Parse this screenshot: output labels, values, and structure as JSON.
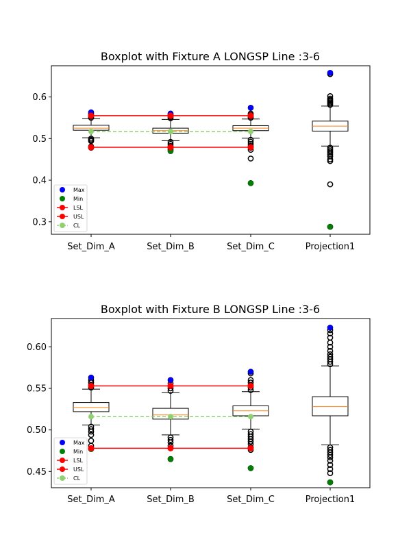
{
  "chart_data": [
    {
      "type": "box",
      "title": "Boxplot with Fixture A LONGSP Line :3-6",
      "categories": [
        "Set_Dim_A",
        "Set_Dim_B",
        "Set_Dim_C",
        "Projection1"
      ],
      "ylim": [
        0.27,
        0.675
      ],
      "yticks": [
        0.3,
        0.4,
        0.5,
        0.6
      ],
      "boxes": [
        {
          "q1": 0.52,
          "median": 0.525,
          "q3": 0.532,
          "whisker_low": 0.502,
          "whisker_high": 0.548,
          "outliers": [
            0.55,
            0.553,
            0.556,
            0.559,
            0.563,
            0.494,
            0.497,
            0.5,
            0.481,
            0.478
          ]
        },
        {
          "q1": 0.513,
          "median": 0.519,
          "q3": 0.525,
          "whisker_low": 0.495,
          "whisker_high": 0.546,
          "outliers": [
            0.549,
            0.552,
            0.555,
            0.558,
            0.56,
            0.492,
            0.487,
            0.482,
            0.478,
            0.474,
            0.47
          ]
        },
        {
          "q1": 0.519,
          "median": 0.525,
          "q3": 0.531,
          "whisker_low": 0.501,
          "whisker_high": 0.547,
          "outliers": [
            0.55,
            0.553,
            0.557,
            0.56,
            0.574,
            0.497,
            0.492,
            0.487,
            0.482,
            0.478,
            0.473,
            0.452,
            0.393
          ]
        },
        {
          "q1": 0.518,
          "median": 0.53,
          "q3": 0.542,
          "whisker_low": 0.482,
          "whisker_high": 0.578,
          "outliers": [
            0.581,
            0.584,
            0.587,
            0.59,
            0.593,
            0.596,
            0.602,
            0.655,
            0.658,
            0.478,
            0.474,
            0.47,
            0.466,
            0.462,
            0.457,
            0.45,
            0.446,
            0.39,
            0.288
          ]
        }
      ],
      "max_points": [
        0.563,
        0.56,
        0.574,
        0.658
      ],
      "min_points": [
        0.478,
        0.47,
        0.393,
        0.288
      ],
      "lsl": 0.479,
      "usl": 0.555,
      "cl": 0.517,
      "limit_points": [
        {
          "usl": 0.555,
          "lsl": 0.479,
          "cl": 0.517
        },
        {
          "usl": 0.555,
          "lsl": 0.479,
          "cl": 0.517
        },
        {
          "usl": 0.555,
          "lsl": 0.479,
          "cl": 0.517
        }
      ],
      "legend": [
        "Max",
        "Min",
        "LSL",
        "USL",
        "CL"
      ],
      "legend_position": "lower-left",
      "colors": {
        "max": "#0000ff",
        "min": "#008000",
        "limit": "#ff0000",
        "cl": "#90d070",
        "median": "#ff7f0e"
      }
    },
    {
      "type": "box",
      "title": "Boxplot with Fixture B LONGSP Line :3-6",
      "categories": [
        "Set_Dim_A",
        "Set_Dim_B",
        "Set_Dim_C",
        "Projection1"
      ],
      "ylim": [
        0.4305,
        0.634
      ],
      "yticks": [
        0.45,
        0.5,
        0.55,
        0.6
      ],
      "ytick_labels": [
        "0.45",
        "0.50",
        "0.55",
        "0.60"
      ],
      "boxes": [
        {
          "q1": 0.522,
          "median": 0.527,
          "q3": 0.533,
          "whisker_low": 0.506,
          "whisker_high": 0.549,
          "outliers": [
            0.551,
            0.554,
            0.557,
            0.56,
            0.563,
            0.504,
            0.501,
            0.498,
            0.494,
            0.487,
            0.481,
            0.477
          ]
        },
        {
          "q1": 0.513,
          "median": 0.518,
          "q3": 0.526,
          "whisker_low": 0.494,
          "whisker_high": 0.545,
          "outliers": [
            0.547,
            0.55,
            0.553,
            0.556,
            0.56,
            0.491,
            0.488,
            0.485,
            0.481,
            0.478,
            0.465
          ]
        },
        {
          "q1": 0.517,
          "median": 0.523,
          "q3": 0.529,
          "whisker_low": 0.501,
          "whisker_high": 0.546,
          "outliers": [
            0.548,
            0.551,
            0.554,
            0.557,
            0.56,
            0.568,
            0.57,
            0.498,
            0.495,
            0.492,
            0.489,
            0.486,
            0.483,
            0.479,
            0.476,
            0.454
          ]
        },
        {
          "q1": 0.517,
          "median": 0.528,
          "q3": 0.54,
          "whisker_low": 0.482,
          "whisker_high": 0.577,
          "outliers": [
            0.579,
            0.582,
            0.585,
            0.588,
            0.591,
            0.595,
            0.6,
            0.605,
            0.611,
            0.616,
            0.62,
            0.623,
            0.479,
            0.476,
            0.473,
            0.47,
            0.467,
            0.463,
            0.458,
            0.453,
            0.448,
            0.437
          ]
        }
      ],
      "max_points": [
        0.563,
        0.56,
        0.57,
        0.623
      ],
      "min_points": [
        0.477,
        0.465,
        0.454,
        0.437
      ],
      "lsl": 0.478,
      "usl": 0.553,
      "cl": 0.516,
      "limit_points": [
        {
          "usl": 0.553,
          "lsl": 0.478,
          "cl": 0.516
        },
        {
          "usl": 0.553,
          "lsl": 0.478,
          "cl": 0.516
        },
        {
          "usl": 0.553,
          "lsl": 0.478,
          "cl": 0.516
        }
      ],
      "legend": [
        "Max",
        "Min",
        "LSL",
        "USL",
        "CL"
      ],
      "legend_position": "lower-left",
      "colors": {
        "max": "#0000ff",
        "min": "#008000",
        "limit": "#ff0000",
        "cl": "#90d070",
        "median": "#ff7f0e"
      }
    }
  ]
}
